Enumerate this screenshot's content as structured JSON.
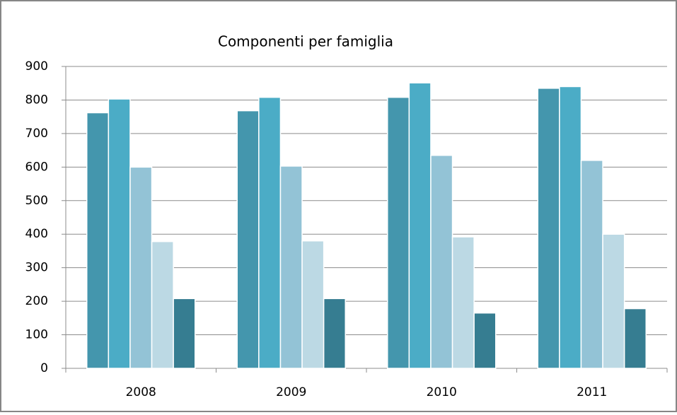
{
  "chart_data": {
    "type": "bar",
    "title": "Componenti per famiglia",
    "categories": [
      "2008",
      "2009",
      "2010",
      "2011"
    ],
    "series": [
      {
        "color": "#4496ad",
        "values": [
          762,
          768,
          808,
          835
        ]
      },
      {
        "color": "#4bacc6",
        "values": [
          803,
          808,
          851,
          840
        ]
      },
      {
        "color": "#93c3d6",
        "values": [
          600,
          603,
          635,
          620
        ]
      },
      {
        "color": "#bcd9e4",
        "values": [
          378,
          380,
          392,
          400
        ]
      },
      {
        "color": "#367d91",
        "values": [
          208,
          208,
          165,
          178
        ]
      }
    ],
    "ylim": [
      0,
      900
    ],
    "yticks": [
      0,
      100,
      200,
      300,
      400,
      500,
      600,
      700,
      800,
      900
    ],
    "grid": true
  }
}
